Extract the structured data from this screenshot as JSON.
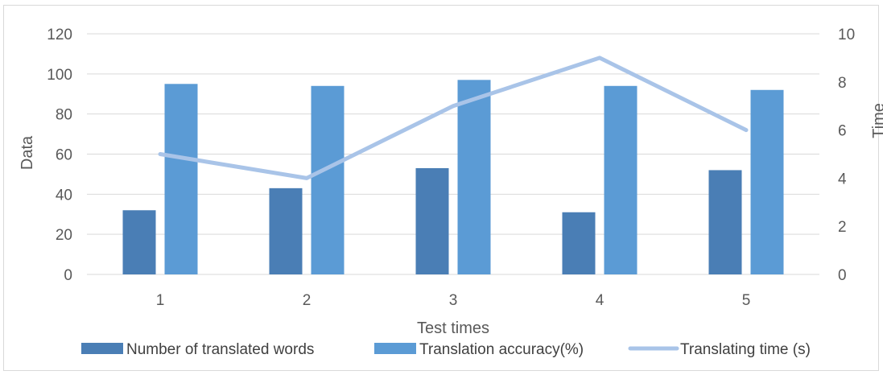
{
  "chart_data": {
    "type": "bar",
    "categories": [
      "1",
      "2",
      "3",
      "4",
      "5"
    ],
    "xlabel": "Test times",
    "ylabel": "Data",
    "y2label": "Time",
    "ylim": [
      0,
      120
    ],
    "yticks": [
      "0",
      "20",
      "40",
      "60",
      "80",
      "100",
      "120"
    ],
    "y2lim": [
      0,
      10
    ],
    "y2ticks": [
      "0",
      "2",
      "4",
      "6",
      "8",
      "10"
    ],
    "grid": true,
    "legend_position": "bottom",
    "series": [
      {
        "name": "Number of translated words",
        "type": "bar",
        "axis": "left",
        "color": "#4a7eb5",
        "values": [
          32,
          43,
          53,
          31,
          52
        ]
      },
      {
        "name": "Translation accuracy(%)",
        "type": "bar",
        "axis": "left",
        "color": "#5b9bd5",
        "values": [
          95,
          94,
          97,
          94,
          92
        ]
      },
      {
        "name": "Translating time (s)",
        "type": "line",
        "axis": "right",
        "color": "#a9c4e8",
        "values": [
          5,
          4,
          7,
          9,
          6
        ]
      }
    ]
  }
}
